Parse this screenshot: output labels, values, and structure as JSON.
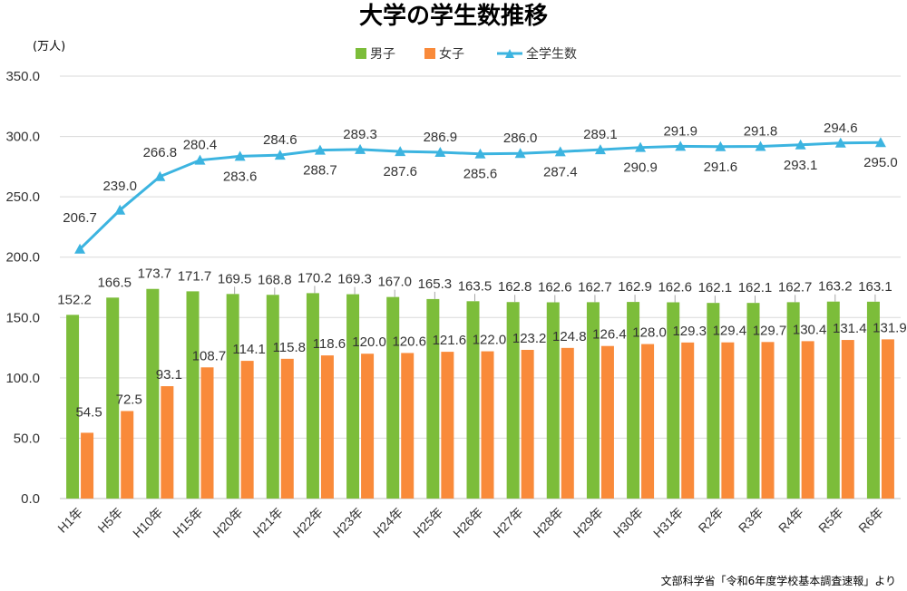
{
  "chart_data": {
    "type": "bar",
    "title": "大学の学生数推移",
    "ylabel": "(万人)",
    "ylim": [
      0,
      350
    ],
    "yticks": [
      "0.0",
      "50.0",
      "100.0",
      "150.0",
      "200.0",
      "250.0",
      "300.0",
      "350.0"
    ],
    "grid": true,
    "legend_position": "top",
    "categories": [
      "H1年",
      "H5年",
      "H10年",
      "H15年",
      "H20年",
      "H21年",
      "H22年",
      "H23年",
      "H24年",
      "H25年",
      "H26年",
      "H27年",
      "H28年",
      "H29年",
      "H30年",
      "H31年",
      "R2年",
      "R3年",
      "R4年",
      "R5年",
      "R6年"
    ],
    "series": [
      {
        "name": "男子",
        "type": "bar",
        "color": "#7cbd3a",
        "values": [
          152.2,
          166.5,
          173.7,
          171.7,
          169.5,
          168.8,
          170.2,
          169.3,
          167.0,
          165.3,
          163.5,
          162.8,
          162.6,
          162.7,
          162.9,
          162.6,
          162.1,
          162.1,
          162.7,
          163.2,
          163.1
        ]
      },
      {
        "name": "女子",
        "type": "bar",
        "color": "#f98a3a",
        "values": [
          54.5,
          72.5,
          93.1,
          108.7,
          114.1,
          115.8,
          118.6,
          120.0,
          120.6,
          121.6,
          122.0,
          123.2,
          124.8,
          126.4,
          128.0,
          129.3,
          129.4,
          129.7,
          130.4,
          131.4,
          131.9
        ]
      },
      {
        "name": "全学生数",
        "type": "line",
        "marker": "triangle",
        "color": "#3cb4e0",
        "values": [
          206.7,
          239.0,
          266.8,
          280.4,
          283.6,
          284.6,
          288.7,
          289.3,
          287.6,
          286.9,
          285.6,
          286.0,
          287.4,
          289.1,
          290.9,
          291.9,
          291.6,
          291.8,
          293.1,
          294.6,
          295.0
        ]
      }
    ],
    "source": "文部科学省「令和6年度学校基本調査速報」より"
  }
}
